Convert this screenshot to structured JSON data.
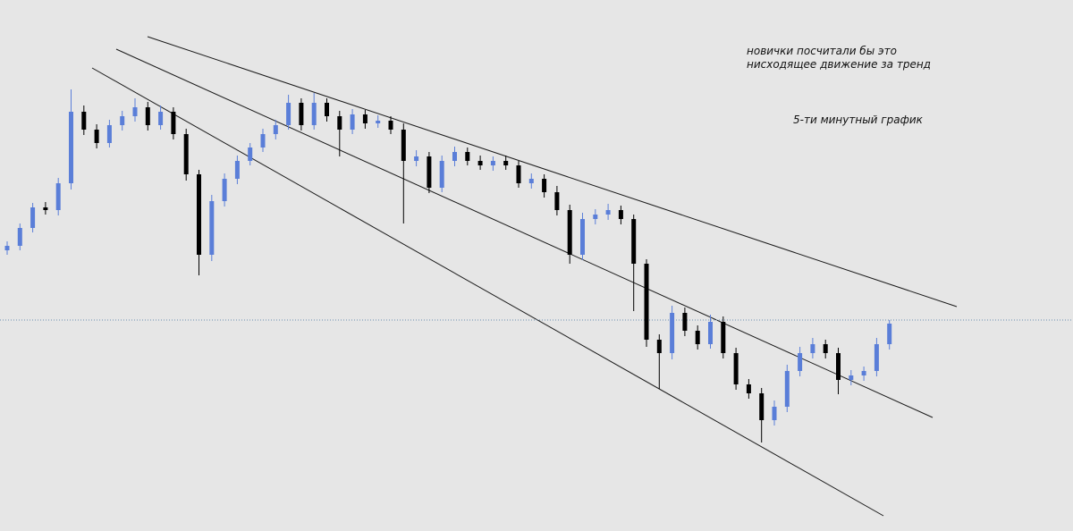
{
  "chart_data": {
    "type": "candlestick",
    "annotations": [
      "новички посчитали бы это",
      "нисходящее движение за тренд",
      "5-ти минутный график"
    ],
    "ylim": [
      0,
      594
    ],
    "price_line": 236,
    "up_color": "#5a7ed8",
    "down_color": "#000000",
    "open": [
      314,
      319,
      339,
      362,
      359,
      389,
      469,
      449,
      434,
      454,
      464,
      474,
      454,
      469,
      444,
      399,
      309,
      369,
      394,
      414,
      429,
      444,
      454,
      479,
      454,
      479,
      464,
      449,
      466,
      456,
      459,
      449,
      414,
      419,
      384,
      414,
      424,
      414,
      409,
      414,
      409,
      389,
      394,
      379,
      359,
      309,
      349,
      354,
      359,
      349,
      299,
      214,
      199,
      244,
      224,
      209,
      234,
      199,
      164,
      154,
      124,
      139,
      179,
      199,
      209,
      199,
      169,
      174,
      179,
      209
    ],
    "high": [
      324,
      344,
      367,
      368,
      395,
      494,
      476,
      455,
      460,
      470,
      484,
      480,
      476,
      474,
      450,
      404,
      376,
      400,
      420,
      434,
      450,
      460,
      488,
      484,
      490,
      484,
      470,
      472,
      471,
      465,
      464,
      456,
      426,
      424,
      420,
      430,
      429,
      420,
      419,
      420,
      414,
      400,
      399,
      386,
      365,
      356,
      360,
      366,
      364,
      354,
      304,
      220,
      252,
      250,
      230,
      242,
      240,
      205,
      170,
      160,
      146,
      186,
      206,
      216,
      214,
      205,
      180,
      184,
      216,
      236
    ],
    "low": [
      309,
      314,
      334,
      354,
      353,
      382,
      443,
      428,
      429,
      448,
      458,
      448,
      449,
      438,
      392,
      286,
      302,
      363,
      388,
      409,
      424,
      438,
      449,
      448,
      449,
      458,
      419,
      444,
      450,
      451,
      444,
      344,
      408,
      378,
      379,
      408,
      409,
      404,
      403,
      404,
      384,
      383,
      373,
      353,
      299,
      303,
      343,
      348,
      343,
      246,
      206,
      159,
      192,
      218,
      203,
      204,
      193,
      158,
      148,
      99,
      118,
      133,
      173,
      193,
      193,
      153,
      163,
      168,
      173,
      203
    ],
    "close": [
      319,
      339,
      362,
      359,
      389,
      469,
      449,
      434,
      454,
      464,
      474,
      454,
      469,
      444,
      399,
      309,
      369,
      394,
      414,
      429,
      444,
      454,
      479,
      454,
      479,
      464,
      449,
      466,
      456,
      459,
      449,
      414,
      419,
      384,
      414,
      424,
      414,
      409,
      414,
      409,
      389,
      394,
      379,
      359,
      309,
      349,
      354,
      359,
      349,
      299,
      214,
      199,
      244,
      224,
      209,
      234,
      199,
      164,
      154,
      124,
      139,
      179,
      199,
      209,
      199,
      169,
      174,
      179,
      209,
      232
    ]
  }
}
